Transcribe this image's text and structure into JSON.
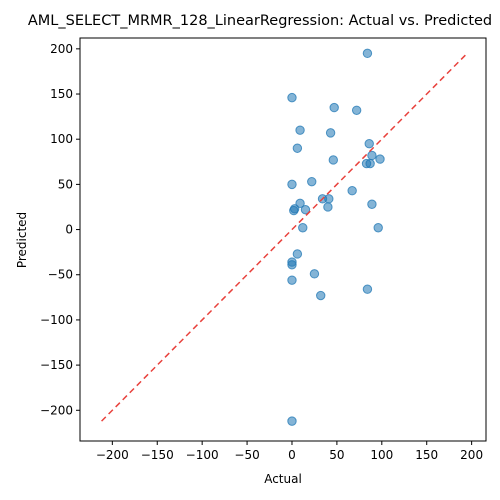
{
  "chart_data": {
    "type": "scatter",
    "title": "AML_SELECT_MRMR_128_LinearRegression: Actual vs. Predicted",
    "xlabel": "Actual",
    "ylabel": "Predicted",
    "xlim": [
      -236,
      216
    ],
    "ylim": [
      -234,
      212
    ],
    "xticks": [
      -200,
      -150,
      -100,
      -50,
      0,
      50,
      100,
      150,
      200
    ],
    "yticks": [
      -200,
      -150,
      -100,
      -50,
      0,
      50,
      100,
      150,
      200
    ],
    "grid": false,
    "identity_line": {
      "from": -212,
      "to": 193,
      "color": "#e8413c",
      "style": "dashed"
    },
    "point_color": "#1f77b4",
    "series": [
      {
        "x": [
          84,
          0,
          47,
          72,
          9,
          43,
          86,
          6,
          89,
          46,
          98,
          83,
          87,
          0,
          22,
          67,
          34,
          41,
          9,
          40,
          89,
          3,
          15,
          2,
          12,
          96,
          6,
          0,
          0,
          25,
          0,
          84,
          32,
          0
        ],
        "y": [
          195,
          146,
          135,
          132,
          110,
          107,
          95,
          90,
          82,
          77,
          78,
          73,
          73,
          50,
          53,
          43,
          34,
          34,
          29,
          25,
          28,
          23,
          22,
          21,
          2,
          2,
          -27,
          -36,
          -39,
          -49,
          -56,
          -66,
          -73,
          -212
        ]
      }
    ]
  }
}
